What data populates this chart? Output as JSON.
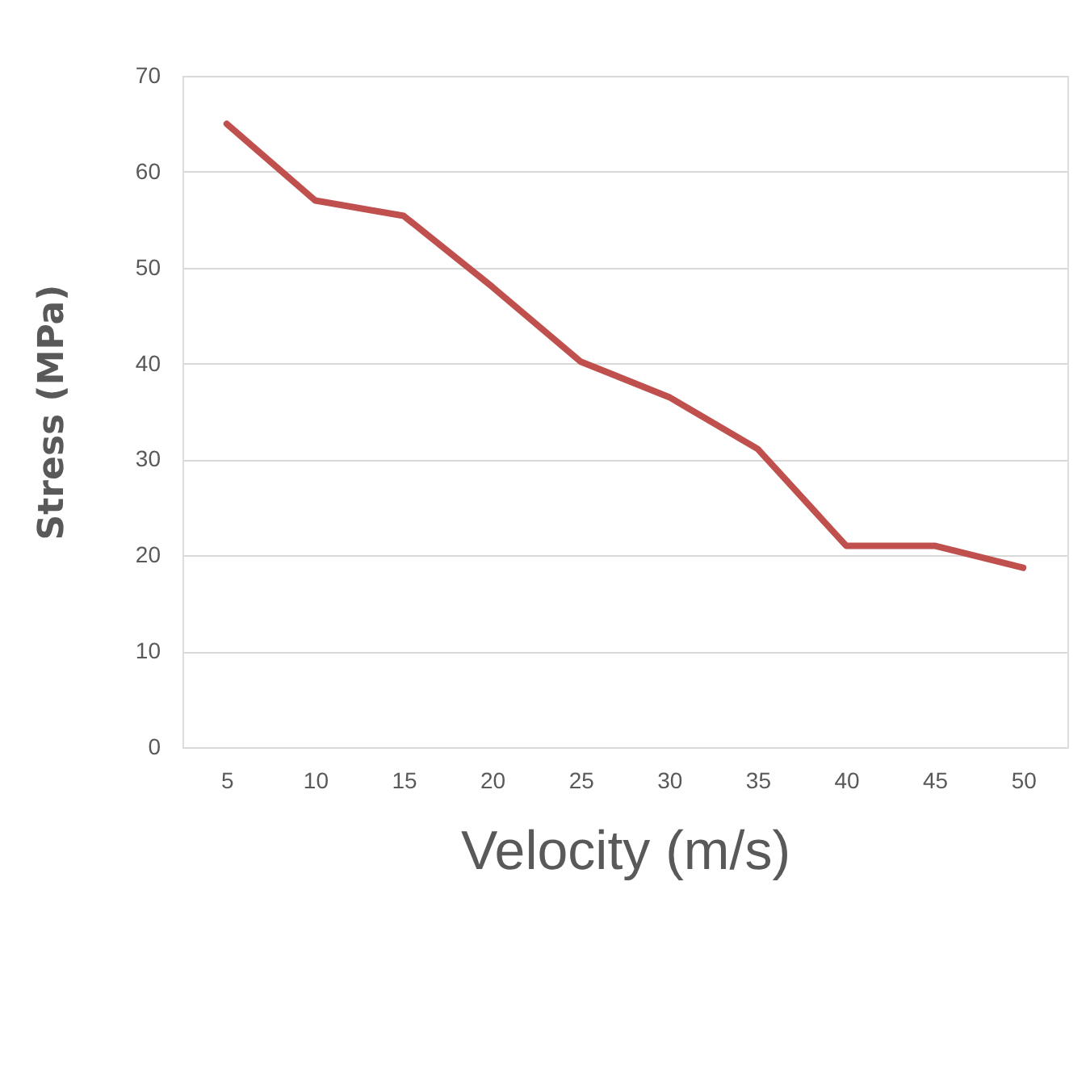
{
  "chart_data": {
    "type": "line",
    "xlabel": "Velocity (m/s)",
    "ylabel": "Stress (MPa)",
    "categories": [
      "5",
      "10",
      "15",
      "20",
      "25",
      "30",
      "35",
      "40",
      "45",
      "50"
    ],
    "series": [
      {
        "color": "#c0504d",
        "values": [
          65,
          57,
          55.4,
          48,
          40.2,
          36.5,
          31.1,
          21,
          21,
          18.7
        ]
      }
    ],
    "ylim": [
      0,
      70
    ],
    "yticks": [
      0,
      10,
      20,
      30,
      40,
      50,
      60,
      70
    ],
    "grid": "y",
    "marker": "none",
    "line_style": "solid"
  }
}
